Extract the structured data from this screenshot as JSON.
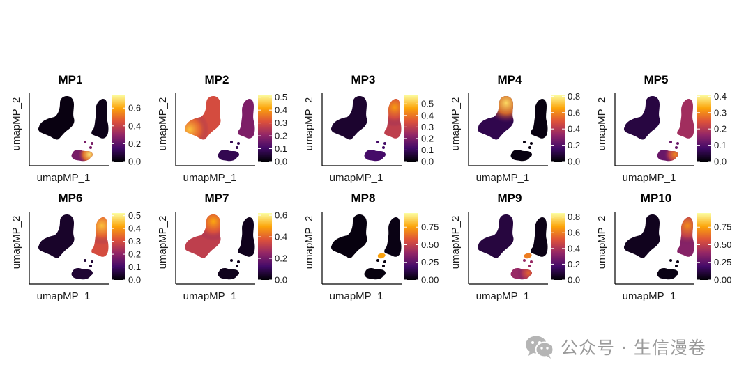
{
  "chart_data": {
    "type": "scatter",
    "layout": "faceted grid, 2 rows x 5 columns, UMAP embedding colored by meta-program score",
    "colormap": "inferno",
    "colormap_stops": [
      "#000004",
      "#420a68",
      "#932667",
      "#dd513a",
      "#fca50a",
      "#fcffa4"
    ],
    "xlabel": "umapMP_1",
    "ylabel": "umapMP_2",
    "grid": false,
    "legend": "colorbar right of each panel",
    "panels": [
      {
        "title": "MP1",
        "scale": [
          0,
          0.75
        ],
        "ticks": [
          "0.0",
          "0.2",
          "0.4",
          "0.6"
        ],
        "tick_values": [
          0,
          0.2,
          0.4,
          0.6
        ],
        "scores": {
          "upper_left": 0.02,
          "right_cluster": 0.03,
          "bottom_cluster": 0.25
        },
        "hotspots": [
          {
            "region": "bottom_cluster",
            "side": "right",
            "value": 0.7
          }
        ]
      },
      {
        "title": "MP2",
        "scale": [
          0,
          0.52
        ],
        "ticks": [
          "0.0",
          "0.1",
          "0.2",
          "0.3",
          "0.4",
          "0.5"
        ],
        "tick_values": [
          0,
          0.1,
          0.2,
          0.3,
          0.4,
          0.5
        ],
        "scores": {
          "upper_left": 0.3,
          "right_cluster": 0.18,
          "bottom_cluster": 0.08
        },
        "hotspots": [
          {
            "region": "upper_left",
            "side": "left",
            "value": 0.45
          }
        ]
      },
      {
        "title": "MP3",
        "scale": [
          0,
          0.58
        ],
        "ticks": [
          "0.0",
          "0.1",
          "0.2",
          "0.3",
          "0.4",
          "0.5"
        ],
        "tick_values": [
          0,
          0.1,
          0.2,
          0.3,
          0.4,
          0.5
        ],
        "scores": {
          "upper_left": 0.05,
          "right_cluster": 0.3,
          "bottom_cluster": 0.12
        },
        "hotspots": [
          {
            "region": "right_cluster",
            "side": "top",
            "value": 0.45
          }
        ]
      },
      {
        "title": "MP4",
        "scale": [
          0,
          0.82
        ],
        "ticks": [
          "0.0",
          "0.2",
          "0.4",
          "0.6",
          "0.8"
        ],
        "tick_values": [
          0,
          0.2,
          0.4,
          0.6,
          0.8
        ],
        "scores": {
          "upper_left": 0.12,
          "right_cluster": 0.02,
          "bottom_cluster": 0.02
        },
        "hotspots": [
          {
            "region": "upper_left",
            "side": "top",
            "value": 0.75
          }
        ]
      },
      {
        "title": "MP5",
        "scale": [
          0,
          0.41
        ],
        "ticks": [
          "0.0",
          "0.1",
          "0.2",
          "0.3",
          "0.4"
        ],
        "tick_values": [
          0,
          0.1,
          0.2,
          0.3,
          0.4
        ],
        "scores": {
          "upper_left": 0.05,
          "right_cluster": 0.18,
          "bottom_cluster": 0.12
        },
        "hotspots": [
          {
            "region": "bottom_cluster",
            "side": "right",
            "value": 0.3
          }
        ]
      },
      {
        "title": "MP6",
        "scale": [
          0,
          0.52
        ],
        "ticks": [
          "0.0",
          "0.1",
          "0.2",
          "0.3",
          "0.4",
          "0.5"
        ],
        "tick_values": [
          0,
          0.1,
          0.2,
          0.3,
          0.4,
          0.5
        ],
        "scores": {
          "upper_left": 0.04,
          "right_cluster": 0.3,
          "bottom_cluster": 0.05
        },
        "hotspots": [
          {
            "region": "right_cluster",
            "side": "top",
            "value": 0.45
          }
        ]
      },
      {
        "title": "MP7",
        "scale": [
          0,
          0.62
        ],
        "ticks": [
          "0.0",
          "0.2",
          "0.4",
          "0.6"
        ],
        "tick_values": [
          0,
          0.2,
          0.4,
          0.6
        ],
        "scores": {
          "upper_left": 0.32,
          "right_cluster": 0.03,
          "bottom_cluster": 0.03
        },
        "hotspots": [
          {
            "region": "upper_left",
            "side": "top",
            "value": 0.5
          }
        ]
      },
      {
        "title": "MP8",
        "scale": [
          0,
          0.95
        ],
        "ticks": [
          "0.00",
          "0.25",
          "0.50",
          "0.75"
        ],
        "tick_values": [
          0,
          0.25,
          0.5,
          0.75
        ],
        "scores": {
          "upper_left": 0.02,
          "right_cluster": 0.03,
          "bottom_cluster": 0.02
        },
        "hotspots": [
          {
            "region": "bridge",
            "side": "center",
            "value": 0.75
          }
        ]
      },
      {
        "title": "MP9",
        "scale": [
          0,
          0.85
        ],
        "ticks": [
          "0.0",
          "0.2",
          "0.4",
          "0.6",
          "0.8"
        ],
        "tick_values": [
          0,
          0.2,
          0.4,
          0.6,
          0.8
        ],
        "scores": {
          "upper_left": 0.1,
          "right_cluster": 0.03,
          "bottom_cluster": 0.35
        },
        "hotspots": [
          {
            "region": "bridge",
            "side": "center",
            "value": 0.6
          },
          {
            "region": "bottom_cluster",
            "side": "right",
            "value": 0.55
          }
        ]
      },
      {
        "title": "MP10",
        "scale": [
          0,
          0.95
        ],
        "ticks": [
          "0.00",
          "0.25",
          "0.50",
          "0.75"
        ],
        "tick_values": [
          0,
          0.25,
          0.5,
          0.75
        ],
        "scores": {
          "upper_left": 0.05,
          "right_cluster": 0.35,
          "bottom_cluster": 0.03
        },
        "hotspots": [
          {
            "region": "right_cluster",
            "side": "top",
            "value": 0.7
          }
        ]
      }
    ]
  },
  "watermark": {
    "icon": "wechat-icon",
    "text": "公众号 · 生信漫卷"
  }
}
